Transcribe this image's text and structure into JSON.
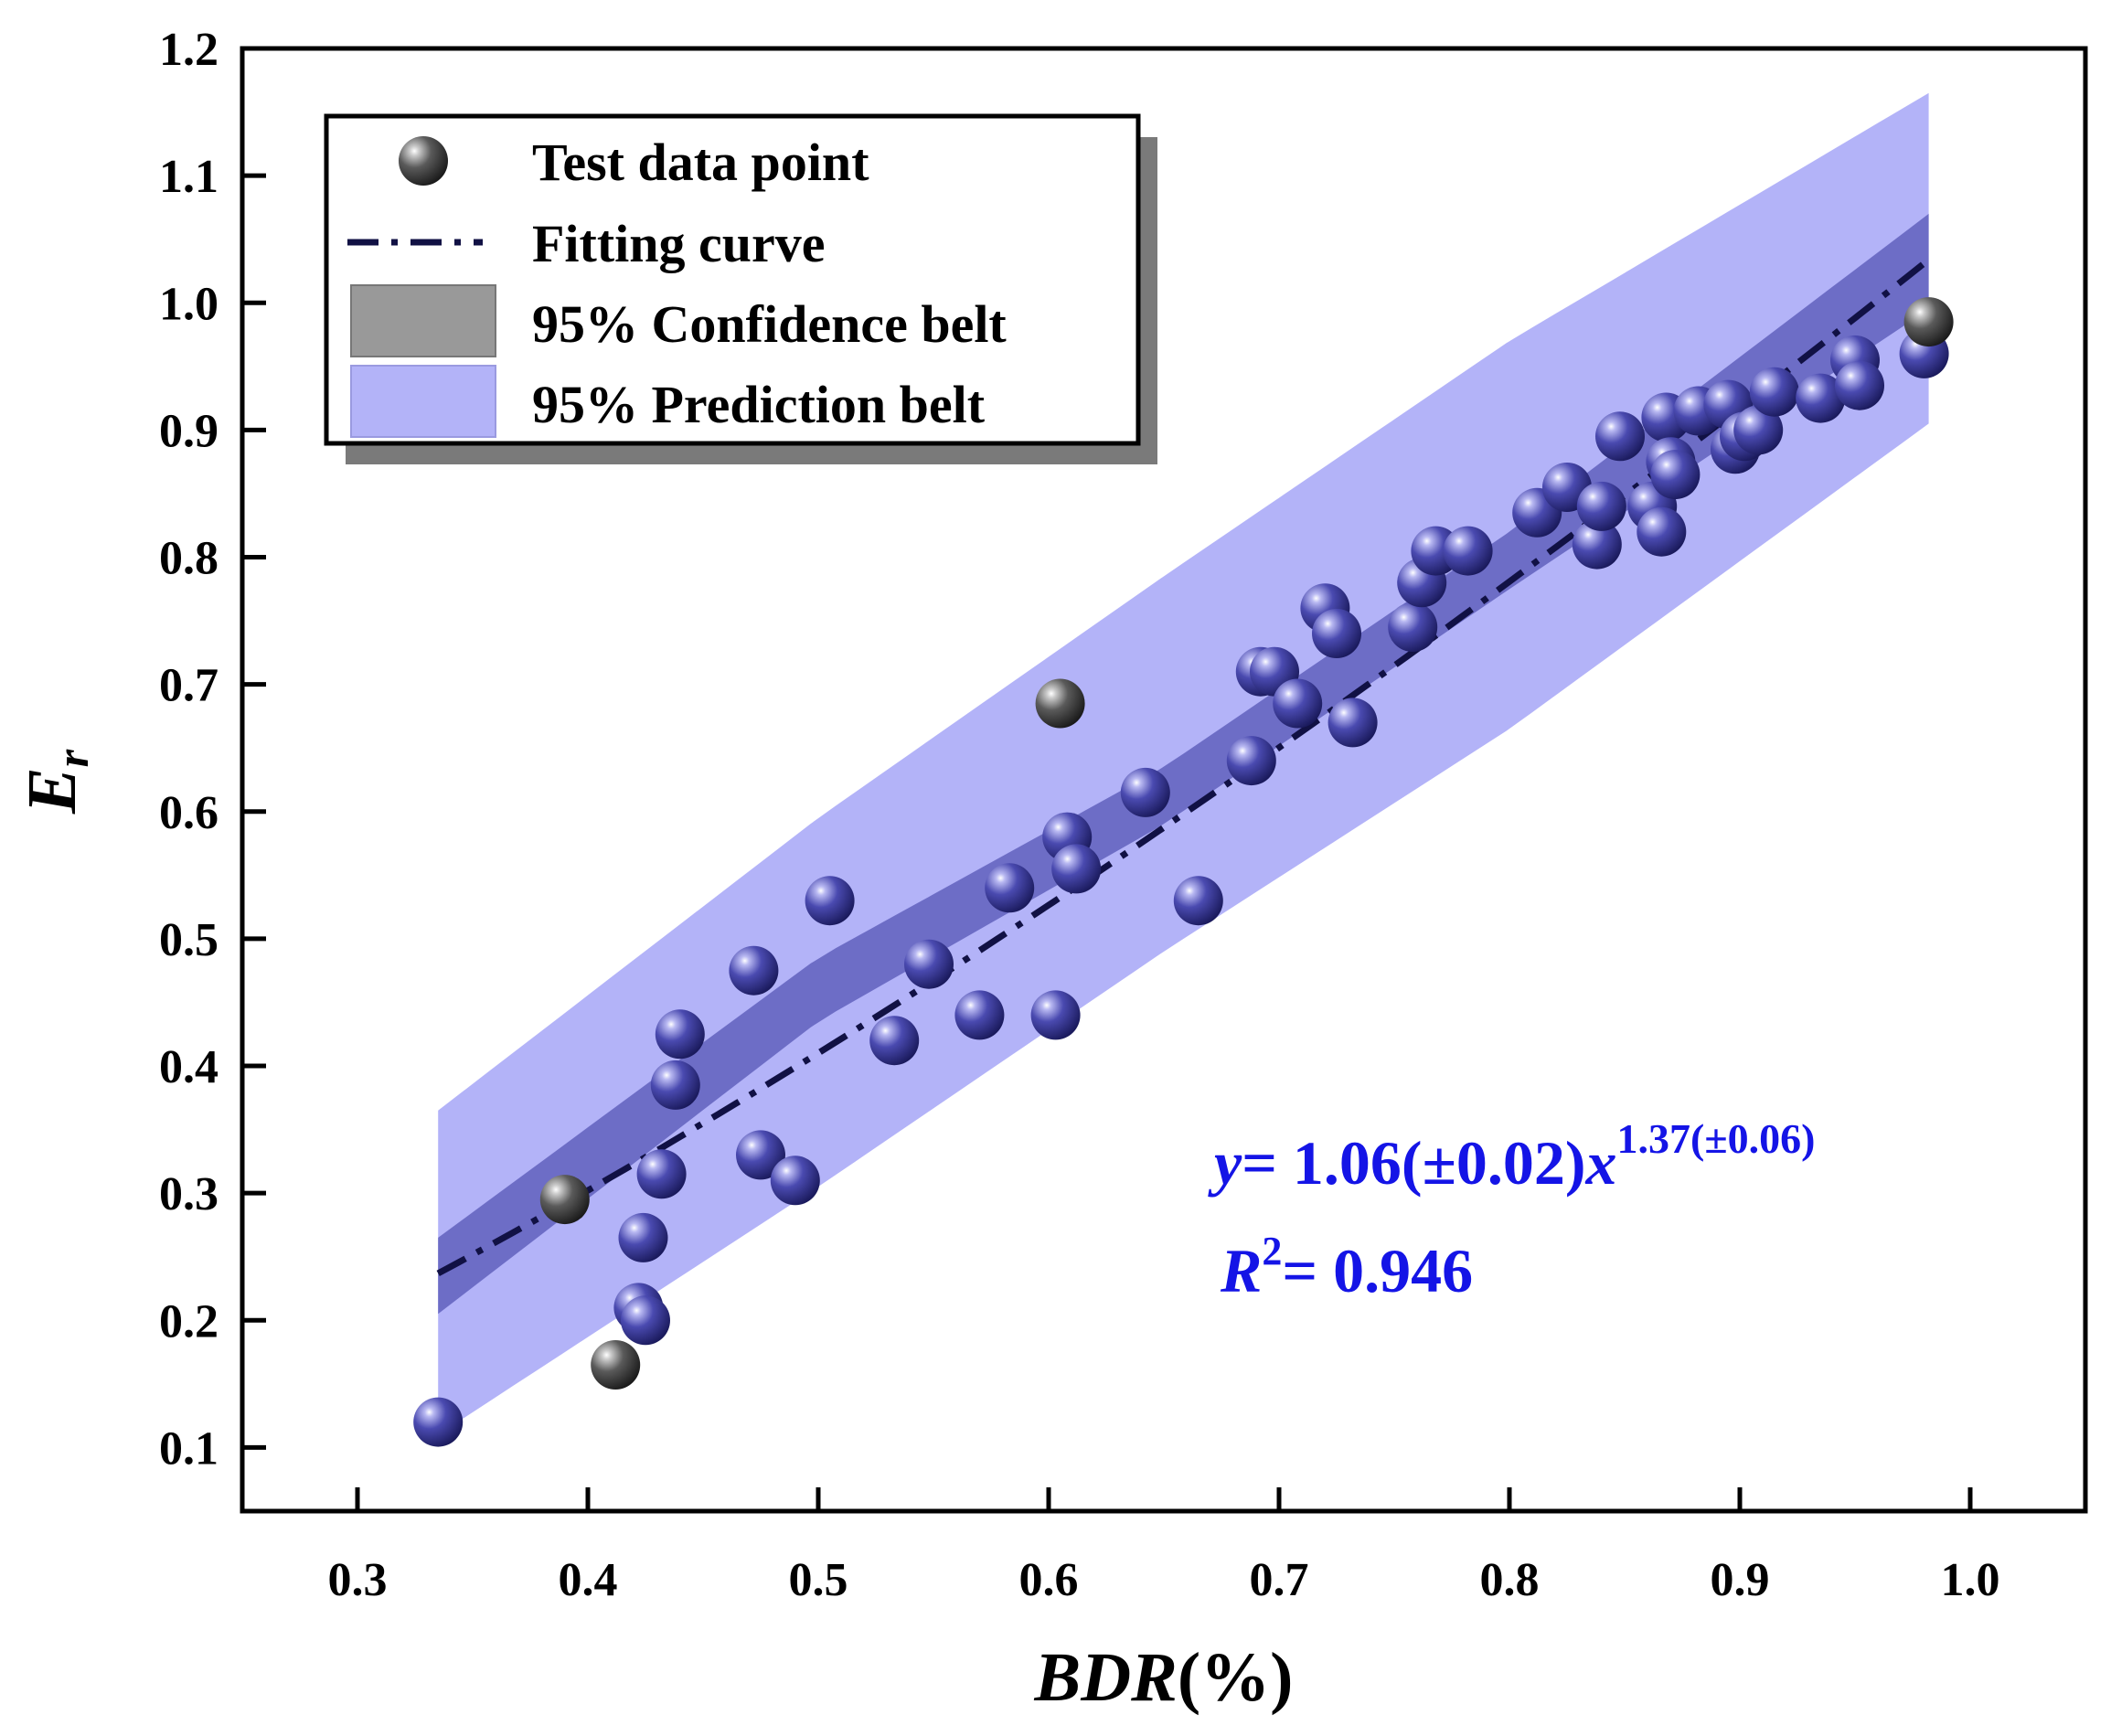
{
  "chart_data": {
    "type": "scatter",
    "xlabel": "BDR(%)",
    "xlabel_parts": {
      "italic": "BDR",
      "normal": "(%)"
    },
    "ylabel": "Er",
    "ylabel_parts": {
      "main": "E",
      "sub": "r"
    },
    "xlim": [
      0.25,
      1.05
    ],
    "ylim": [
      0.05,
      1.2
    ],
    "xticks": [
      "0.3",
      "0.4",
      "0.5",
      "0.6",
      "0.7",
      "0.8",
      "0.9",
      "1.0"
    ],
    "yticks": [
      "0.1",
      "0.2",
      "0.3",
      "0.4",
      "0.5",
      "0.6",
      "0.7",
      "0.8",
      "0.9",
      "1.0",
      "1.1",
      "1.2"
    ],
    "legend": {
      "position": "top-left",
      "entries": [
        "Test data point",
        "Fitting curve",
        "95% Confidence belt",
        "95% Prediction belt"
      ]
    },
    "fit": {
      "a": 1.06,
      "b": 1.37,
      "x_range": [
        0.335,
        0.982
      ]
    },
    "confidence_belt": {
      "x": [
        0.335,
        0.5,
        0.65,
        0.8,
        0.982
      ],
      "lower": [
        0.205,
        0.435,
        0.59,
        0.775,
        0.995
      ],
      "upper": [
        0.265,
        0.485,
        0.635,
        0.82,
        1.07
      ]
    },
    "prediction_belt": {
      "x": [
        0.335,
        0.5,
        0.65,
        0.8,
        0.982
      ],
      "lower": [
        0.11,
        0.305,
        0.49,
        0.665,
        0.905
      ],
      "upper": [
        0.365,
        0.595,
        0.785,
        0.97,
        1.165
      ]
    },
    "annotation": {
      "eq_y": "y",
      "eq_mid": "= 1.06(±0.02)",
      "eq_x": "x",
      "eq_exp": "1.37(±0.06)",
      "r_R": "R",
      "r_sup": "2",
      "r_val": "= 0.946"
    },
    "points": [
      {
        "x": 0.335,
        "y": 0.12
      },
      {
        "x": 0.39,
        "y": 0.295
      },
      {
        "x": 0.412,
        "y": 0.165
      },
      {
        "x": 0.422,
        "y": 0.21
      },
      {
        "x": 0.425,
        "y": 0.2
      },
      {
        "x": 0.424,
        "y": 0.265
      },
      {
        "x": 0.432,
        "y": 0.315
      },
      {
        "x": 0.438,
        "y": 0.385
      },
      {
        "x": 0.44,
        "y": 0.425
      },
      {
        "x": 0.472,
        "y": 0.475
      },
      {
        "x": 0.475,
        "y": 0.33
      },
      {
        "x": 0.49,
        "y": 0.31
      },
      {
        "x": 0.505,
        "y": 0.53
      },
      {
        "x": 0.533,
        "y": 0.42
      },
      {
        "x": 0.548,
        "y": 0.48
      },
      {
        "x": 0.57,
        "y": 0.44
      },
      {
        "x": 0.583,
        "y": 0.54
      },
      {
        "x": 0.603,
        "y": 0.44
      },
      {
        "x": 0.605,
        "y": 0.685
      },
      {
        "x": 0.608,
        "y": 0.58
      },
      {
        "x": 0.612,
        "y": 0.555
      },
      {
        "x": 0.642,
        "y": 0.615
      },
      {
        "x": 0.665,
        "y": 0.53
      },
      {
        "x": 0.688,
        "y": 0.64
      },
      {
        "x": 0.692,
        "y": 0.71
      },
      {
        "x": 0.698,
        "y": 0.71
      },
      {
        "x": 0.708,
        "y": 0.685
      },
      {
        "x": 0.72,
        "y": 0.76
      },
      {
        "x": 0.725,
        "y": 0.74
      },
      {
        "x": 0.732,
        "y": 0.67
      },
      {
        "x": 0.758,
        "y": 0.745
      },
      {
        "x": 0.762,
        "y": 0.78
      },
      {
        "x": 0.768,
        "y": 0.805
      },
      {
        "x": 0.782,
        "y": 0.805
      },
      {
        "x": 0.812,
        "y": 0.835
      },
      {
        "x": 0.825,
        "y": 0.855
      },
      {
        "x": 0.838,
        "y": 0.81
      },
      {
        "x": 0.84,
        "y": 0.84
      },
      {
        "x": 0.848,
        "y": 0.895
      },
      {
        "x": 0.862,
        "y": 0.84
      },
      {
        "x": 0.866,
        "y": 0.82
      },
      {
        "x": 0.868,
        "y": 0.91
      },
      {
        "x": 0.87,
        "y": 0.875
      },
      {
        "x": 0.872,
        "y": 0.865
      },
      {
        "x": 0.882,
        "y": 0.915
      },
      {
        "x": 0.895,
        "y": 0.92
      },
      {
        "x": 0.898,
        "y": 0.885
      },
      {
        "x": 0.902,
        "y": 0.895
      },
      {
        "x": 0.908,
        "y": 0.9
      },
      {
        "x": 0.915,
        "y": 0.93
      },
      {
        "x": 0.935,
        "y": 0.925
      },
      {
        "x": 0.95,
        "y": 0.955
      },
      {
        "x": 0.952,
        "y": 0.935
      },
      {
        "x": 0.98,
        "y": 0.96
      },
      {
        "x": 0.982,
        "y": 0.985
      }
    ],
    "highlighted_points": [
      1,
      2,
      18,
      54
    ]
  }
}
